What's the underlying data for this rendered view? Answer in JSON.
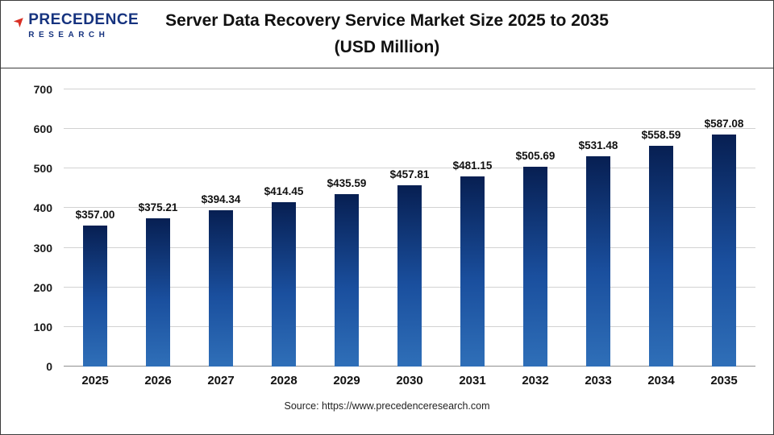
{
  "header": {
    "logo_line1": "PRECEDENCE",
    "logo_line2": "RESEARCH",
    "logo_arrow_icon": "arrow-icon",
    "logo_color": "#16337f",
    "logo_accent_color": "#d93025",
    "title_line1": "Server Data Recovery Service Market Size 2025 to 2035",
    "title_line2": "(USD Million)"
  },
  "chart_data": {
    "type": "bar",
    "title": "Server Data Recovery Service Market Size 2025 to 2035 (USD Million)",
    "categories": [
      "2025",
      "2026",
      "2027",
      "2028",
      "2029",
      "2030",
      "2031",
      "2032",
      "2033",
      "2034",
      "2035"
    ],
    "values": [
      357.0,
      375.21,
      394.34,
      414.45,
      435.59,
      457.81,
      481.15,
      505.69,
      531.48,
      558.59,
      587.08
    ],
    "value_labels": [
      "$357.00",
      "$375.21",
      "$394.34",
      "$414.45",
      "$435.59",
      "$457.81",
      "$481.15",
      "$505.69",
      "$531.48",
      "$558.59",
      "$587.08"
    ],
    "xlabel": "",
    "ylabel": "",
    "ylim": [
      0,
      700
    ],
    "yticks": [
      0,
      100,
      200,
      300,
      400,
      500,
      600,
      700
    ],
    "grid": true,
    "legend": "none",
    "bar_color_top": "#071f52",
    "bar_color_mid": "#1a4f9e",
    "bar_color_bottom": "#2f6fb8"
  },
  "footer": {
    "source": "Source: https://www.precedenceresearch.com"
  }
}
